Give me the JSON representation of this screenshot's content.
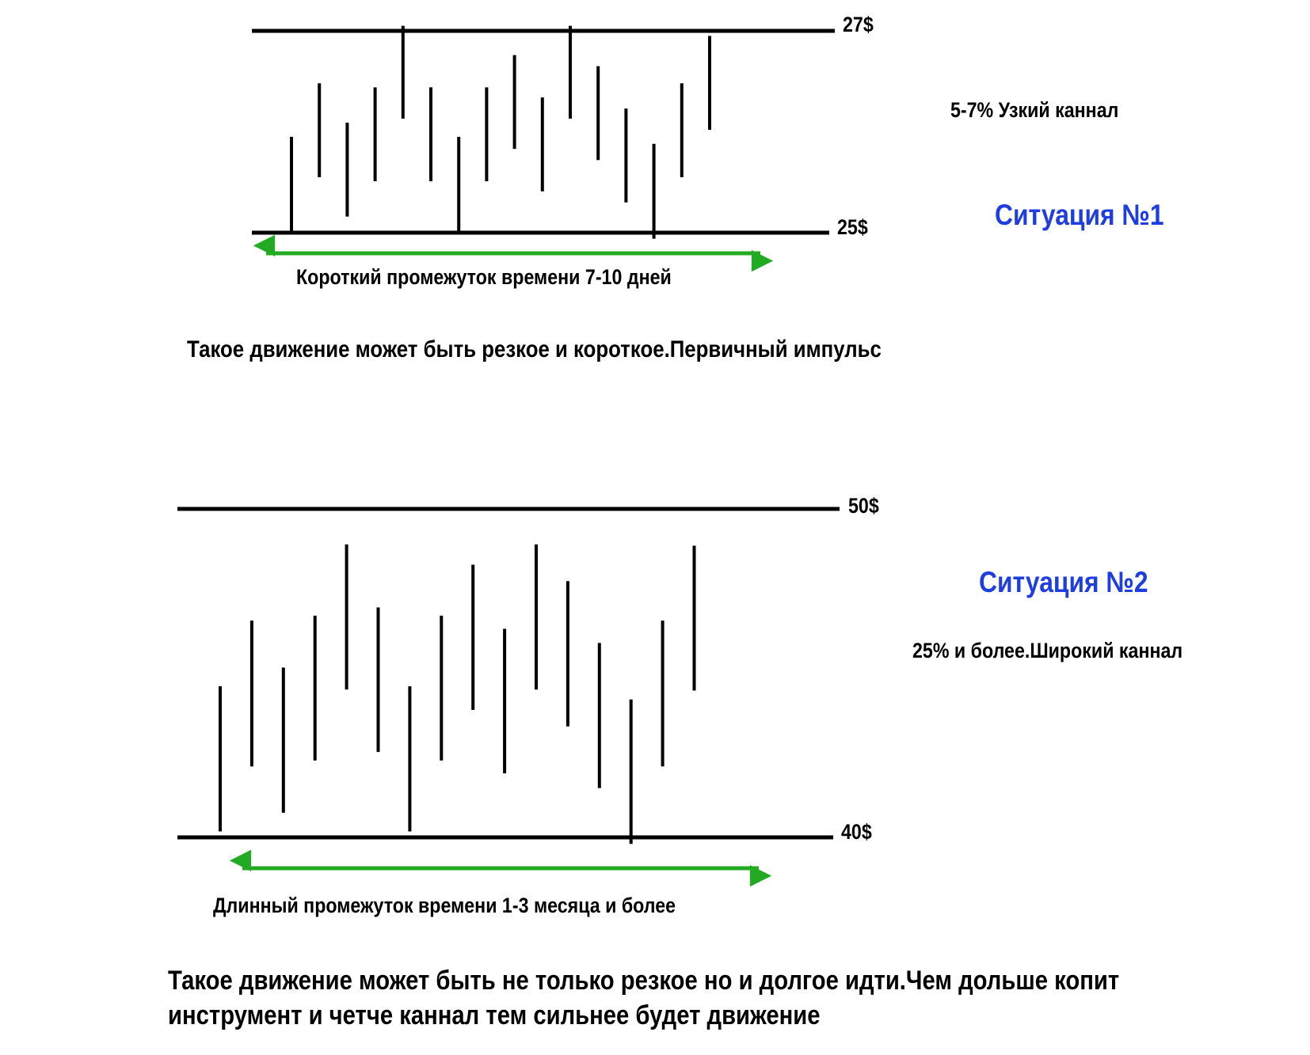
{
  "situation1": {
    "title": "Ситуация №1",
    "upper_level": "27$",
    "lower_level": "25$",
    "channel_note": "5-7% Узкий каннал",
    "period_label": "Короткий промежуток времени 7-10 дней",
    "conclusion": "Такое движение может быть резкое  и короткое.Первичный импульс",
    "bars": [
      [
        25.02,
        25.95
      ],
      [
        25.55,
        26.48
      ],
      [
        25.16,
        26.09
      ],
      [
        25.51,
        26.44
      ],
      [
        26.13,
        27.05
      ],
      [
        25.51,
        26.44
      ],
      [
        25.02,
        25.95
      ],
      [
        25.51,
        26.44
      ],
      [
        25.83,
        26.76
      ],
      [
        25.41,
        26.34
      ],
      [
        26.13,
        27.05
      ],
      [
        25.72,
        26.65
      ],
      [
        25.3,
        26.23
      ],
      [
        24.94,
        25.88
      ],
      [
        25.55,
        26.48
      ],
      [
        26.02,
        26.95
      ]
    ],
    "colors": {
      "title": "#1f3ee0",
      "arrow": "#22aa22",
      "lines": "#000000"
    }
  },
  "situation2": {
    "title": "Ситуация №2",
    "upper_level": "50$",
    "lower_level": "40$",
    "channel_note": "25% и более.Широкий  каннал",
    "period_label": "Длинный  промежуток времени 1-3 месяца и более",
    "conclusion_line1": "Такое движение может быть не только  резкое  но и долгое идти.Чем дольше копит",
    "conclusion_line2": "инструмент и четче каннал тем сильнее будет движение",
    "bars": [
      [
        40.18,
        44.6
      ],
      [
        42.16,
        46.6
      ],
      [
        40.75,
        45.17
      ],
      [
        42.34,
        46.75
      ],
      [
        44.5,
        48.92
      ],
      [
        42.6,
        47.0
      ],
      [
        40.18,
        44.6
      ],
      [
        42.34,
        46.75
      ],
      [
        43.88,
        48.3
      ],
      [
        41.95,
        46.35
      ],
      [
        44.5,
        48.92
      ],
      [
        43.38,
        47.8
      ],
      [
        41.5,
        45.92
      ],
      [
        39.8,
        44.2
      ],
      [
        42.16,
        46.6
      ],
      [
        44.47,
        48.88
      ]
    ],
    "colors": {
      "title": "#1f3ee0",
      "arrow": "#22aa22",
      "lines": "#000000"
    }
  }
}
